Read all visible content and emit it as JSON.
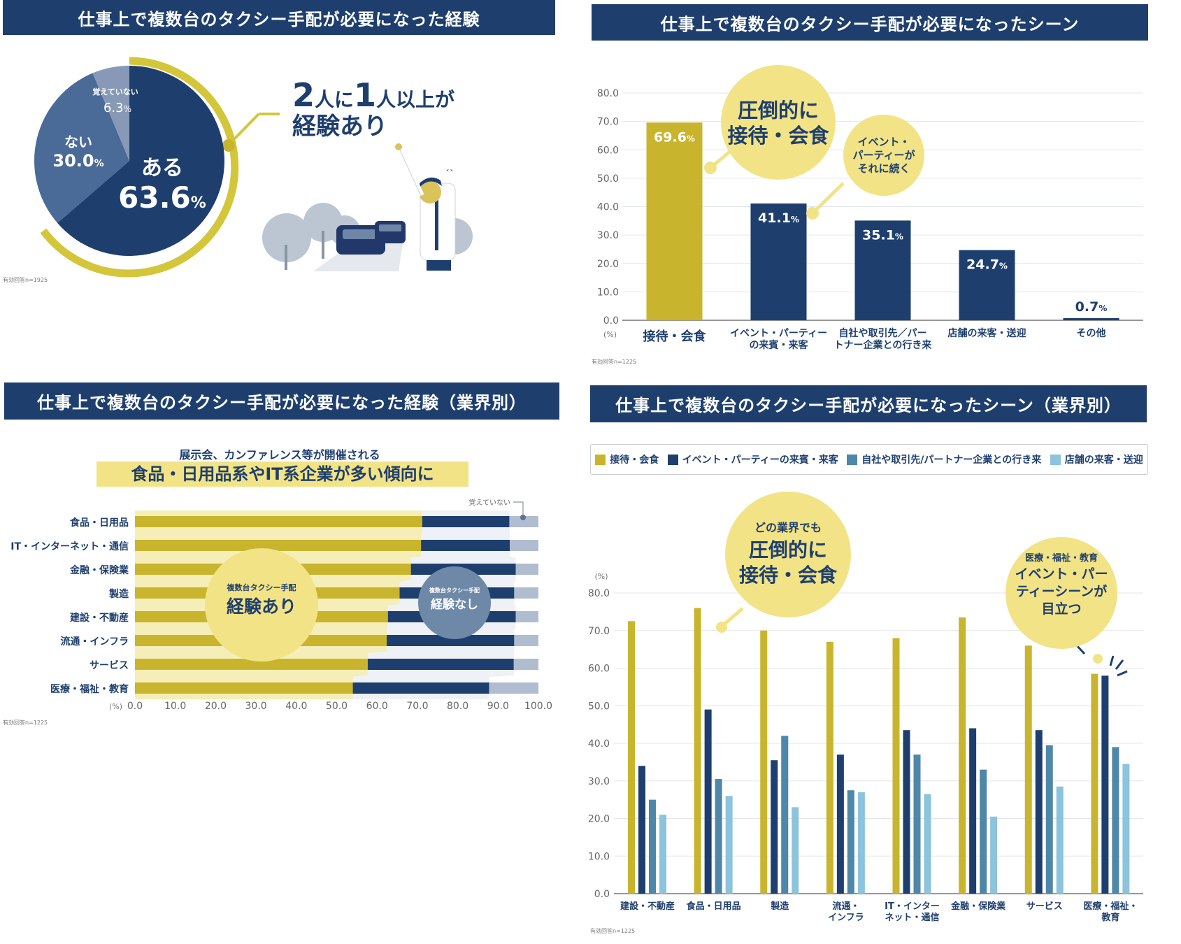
{
  "colors": {
    "navy": "#1e3f6e",
    "gold": "#c9b52d",
    "pale": "#f6eeb8",
    "mid": "#4f87a8",
    "light": "#8cc3dd",
    "gray": "#b0bcd0",
    "bubble": "#f2e386"
  },
  "panel1": {
    "title": "仕事上で複数台のタクシー手配が必要になった経験",
    "callout_line1_num1": "2",
    "callout_line1_txt1": "人に",
    "callout_line1_num2": "1",
    "callout_line1_txt2": "人以上が",
    "callout_line2": "経験あり",
    "slices": [
      {
        "label": "ある",
        "value": "63.6",
        "unit": "%"
      },
      {
        "label": "ない",
        "value": "30.0",
        "unit": "%"
      },
      {
        "label": "覚えていない",
        "value": "6.3",
        "unit": "%"
      }
    ],
    "note": "有効回答n=1925"
  },
  "panel2": {
    "title": "仕事上で複数台のタクシー手配が必要になったシーン",
    "bubble1": [
      "圧倒的に",
      "接待・会食"
    ],
    "bubble2": [
      "イベント・",
      "パーティーが",
      "それに続く"
    ],
    "unit": "(%)",
    "note": "有効回答n=1225"
  },
  "panel3": {
    "title": "仕事上で複数台のタクシー手配が必要になった経験（業界別）",
    "subtitle": "展示会、カンファレンス等が開催される",
    "headline": "食品・日用品系やIT系企業が多い傾向に",
    "bubble_yes_small": "複数台タクシー手配",
    "bubble_yes_big": "経験あり",
    "bubble_no_small": "複数台タクシー手配",
    "bubble_no_big": "経験なし",
    "dontknow_label": "覚えていない",
    "unit": "(%)",
    "note": "有効回答n=1225"
  },
  "panel4": {
    "title": "仕事上で複数台のタクシー手配が必要になったシーン（業界別）",
    "bubble1": [
      "どの業界でも",
      "圧倒的に",
      "接待・会食"
    ],
    "bubble2": [
      "医療・福祉・教育",
      "イベント・パー",
      "ティーシーンが",
      "目立つ"
    ],
    "unit": "(%)",
    "note": "有効回答n=1225"
  },
  "chart_data": [
    {
      "type": "pie",
      "title": "仕事上で複数台のタクシー手配が必要になった経験",
      "categories": [
        "ある",
        "ない",
        "覚えていない"
      ],
      "values": [
        63.6,
        30.0,
        6.3
      ]
    },
    {
      "type": "bar",
      "title": "仕事上で複数台のタクシー手配が必要になったシーン",
      "categories": [
        "接待・会食",
        "イベント・パーティーの来賓・来客",
        "自社や取引先／パートナー企業との行き来",
        "店舗の来客・送迎",
        "その他"
      ],
      "category_lines": [
        [
          "接待・会食"
        ],
        [
          "イベント・パーティー",
          "の来賓・来客"
        ],
        [
          "自社や取引先／パー",
          "トナー企業との行き来"
        ],
        [
          "店舗の来客・送迎"
        ],
        [
          "その他"
        ]
      ],
      "values": [
        69.6,
        41.1,
        35.1,
        24.7,
        0.7
      ],
      "value_labels": [
        "69.6",
        "41.1",
        "35.1",
        "24.7",
        "0.7"
      ],
      "ylim": [
        0,
        80
      ],
      "yticks": [
        "0.0",
        "10.0",
        "20.0",
        "30.0",
        "40.0",
        "50.0",
        "60.0",
        "70.0",
        "80.0"
      ],
      "ylabel": "(%)"
    },
    {
      "type": "bar",
      "orientation": "horizontal-stacked",
      "title": "仕事上で複数台のタクシー手配が必要になった経験（業界別）",
      "categories": [
        "食品・日用品",
        "IT・インターネット・通信",
        "金融・保険業",
        "製造",
        "建設・不動産",
        "流通・インフラ",
        "サービス",
        "医療・福祉・教育"
      ],
      "series": [
        {
          "name": "経験あり",
          "values": [
            71.2,
            70.9,
            68.4,
            65.6,
            62.7,
            62.4,
            57.7,
            54.0
          ]
        },
        {
          "name": "経験なし",
          "values": [
            21.6,
            22.0,
            26.0,
            28.4,
            31.7,
            31.6,
            36.2,
            33.8
          ]
        },
        {
          "name": "覚えていない",
          "values": [
            7.2,
            7.1,
            5.6,
            6.0,
            5.6,
            6.0,
            6.1,
            12.2
          ]
        }
      ],
      "xlim": [
        0,
        100
      ],
      "xticks": [
        "0.0",
        "10.0",
        "20.0",
        "30.0",
        "40.0",
        "50.0",
        "60.0",
        "70.0",
        "80.0",
        "90.0",
        "100.0"
      ],
      "xlabel": "(%)"
    },
    {
      "type": "bar",
      "title": "仕事上で複数台のタクシー手配が必要になったシーン（業界別）",
      "categories": [
        "建設・不動産",
        "食品・日用品",
        "製造",
        "流通・インフラ",
        "IT・インターネット・通信",
        "金融・保険業",
        "サービス",
        "医療・福祉・教育"
      ],
      "category_lines": [
        [
          "建設・不動産"
        ],
        [
          "食品・日用品"
        ],
        [
          "製造"
        ],
        [
          "流通・",
          "インフラ"
        ],
        [
          "IT・インター",
          "ネット・通信"
        ],
        [
          "金融・保険業"
        ],
        [
          "サービス"
        ],
        [
          "医療・福祉・",
          "教育"
        ]
      ],
      "series": [
        {
          "name": "接待・会食",
          "values": [
            72.5,
            76.0,
            70.0,
            67.0,
            68.0,
            73.5,
            66.0,
            58.5
          ]
        },
        {
          "name": "イベント・パーティーの来賓・来客",
          "values": [
            34.0,
            49.0,
            35.5,
            37.0,
            43.5,
            44.0,
            43.5,
            58.0
          ]
        },
        {
          "name": "自社や取引先/パートナー企業との行き来",
          "values": [
            25.0,
            30.5,
            42.0,
            27.5,
            37.0,
            33.0,
            39.5,
            39.0
          ]
        },
        {
          "name": "店舗の来客・送迎",
          "values": [
            21.0,
            26.0,
            23.0,
            27.0,
            26.5,
            20.5,
            28.5,
            34.5
          ]
        }
      ],
      "ylim": [
        0,
        80
      ],
      "yticks": [
        "0.0",
        "10.0",
        "20.0",
        "30.0",
        "40.0",
        "50.0",
        "60.0",
        "70.0",
        "80.0"
      ],
      "ylabel": "(%)",
      "legend": "top"
    }
  ]
}
